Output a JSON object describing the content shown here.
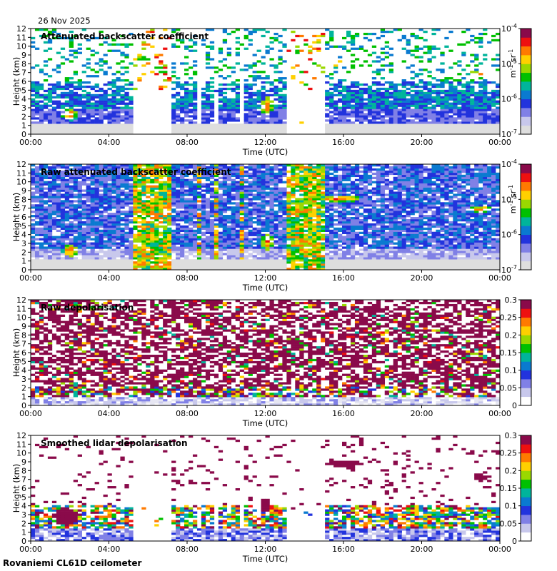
{
  "date": "26 Nov 2025",
  "footer": "Rovaniemi CL61D ceilometer",
  "colors": {
    "cmap": [
      "#e6e6f2",
      "#c8c8ec",
      "#8080e6",
      "#2233dd",
      "#0a7ad0",
      "#00b49b",
      "#00c000",
      "#9ad800",
      "#ffd000",
      "#ff7a00",
      "#ee1010",
      "#8a0a4a"
    ],
    "low_background": "#dedede"
  },
  "chart_data": [
    {
      "type": "heatmap",
      "title": "Attenuated backscatter coefficient",
      "xlabel": "Time (UTC)",
      "ylabel": "Height (km)",
      "x_ticks": [
        "00:00",
        "04:00",
        "08:00",
        "12:00",
        "16:00",
        "20:00",
        "00:00"
      ],
      "xlim": [
        0,
        24
      ],
      "y_ticks": [
        "0",
        "1",
        "2",
        "3",
        "4",
        "5",
        "6",
        "7",
        "8",
        "9",
        "10",
        "11",
        "12"
      ],
      "ylim": [
        0,
        12
      ],
      "colorbar": {
        "scale": "log",
        "ticks": [
          "10",
          "10",
          "10",
          "10"
        ],
        "exponents": [
          "-7",
          "-6",
          "-5",
          "-4"
        ],
        "label": "m",
        "label_sup": "-1",
        "label_mid": " sr",
        "label_sup2": "-1",
        "range": [
          1e-07,
          0.0001
        ]
      },
      "features": [
        "cloud layer 4-6 km at 00:00-05:00",
        "snow fall 1-3 km at 01:30-02:30",
        "cloud 1-5 km at 11:30-12:30",
        "high cloud 7.5-9 km at 15:00-18:00",
        "high cloud 6.5-8 km at 22:30-23:30"
      ]
    },
    {
      "type": "heatmap",
      "title": "Raw attenuated backscatter coefficient",
      "xlabel": "Time (UTC)",
      "ylabel": "Height (km)",
      "x_ticks": [
        "00:00",
        "04:00",
        "08:00",
        "12:00",
        "16:00",
        "20:00",
        "00:00"
      ],
      "xlim": [
        0,
        24
      ],
      "y_ticks": [
        "0",
        "1",
        "2",
        "3",
        "4",
        "5",
        "6",
        "7",
        "8",
        "9",
        "10",
        "11",
        "12"
      ],
      "ylim": [
        0,
        12
      ],
      "colorbar": {
        "scale": "log",
        "ticks": [
          "10",
          "10",
          "10",
          "10"
        ],
        "exponents": [
          "-7",
          "-6",
          "-5",
          "-4"
        ],
        "label": "m",
        "label_sup": "-1",
        "label_mid": " sr",
        "label_sup2": "-1",
        "range": [
          1e-07,
          0.0001
        ]
      },
      "features": [
        "elevated noise 05:10-07:20",
        "elevated noise 13:00-15:00",
        "low backscatter near surface"
      ]
    },
    {
      "type": "heatmap",
      "title": "Raw depolarisation",
      "xlabel": "Time (UTC)",
      "ylabel": "Height (km)",
      "x_ticks": [
        "00:00",
        "04:00",
        "08:00",
        "12:00",
        "16:00",
        "20:00",
        "00:00"
      ],
      "xlim": [
        0,
        24
      ],
      "y_ticks": [
        "0",
        "1",
        "2",
        "3",
        "4",
        "5",
        "6",
        "7",
        "8",
        "9",
        "10",
        "11",
        "12"
      ],
      "ylim": [
        0,
        12
      ],
      "colorbar": {
        "scale": "linear",
        "ticks": [
          "0",
          "0.05",
          "0.1",
          "0.15",
          "0.2",
          "0.25",
          "0.3"
        ],
        "range": [
          0,
          0.3
        ]
      },
      "features": [
        "noisy high depolarisation above 2 km",
        "low depolarisation below 1.5 km"
      ]
    },
    {
      "type": "heatmap",
      "title": "Smoothed lidar depolarisation",
      "xlabel": "Time (UTC)",
      "ylabel": "Height (km)",
      "x_ticks": [
        "00:00",
        "04:00",
        "08:00",
        "12:00",
        "16:00",
        "20:00",
        "00:00"
      ],
      "xlim": [
        0,
        24
      ],
      "y_ticks": [
        "0",
        "1",
        "2",
        "3",
        "4",
        "5",
        "6",
        "7",
        "8",
        "9",
        "10",
        "11",
        "12"
      ],
      "ylim": [
        0,
        12
      ],
      "colorbar": {
        "scale": "linear",
        "ticks": [
          "0",
          "0.05",
          "0.1",
          "0.15",
          "0.2",
          "0.25",
          "0.3"
        ],
        "range": [
          0,
          0.3
        ]
      },
      "features": [
        "ice cloud depolarisation 8-9.5 km at 15:00-18:00",
        "ice cloud 6.5-8 km at 22:30-23:30",
        "boundary layer 0-4 km"
      ]
    }
  ]
}
